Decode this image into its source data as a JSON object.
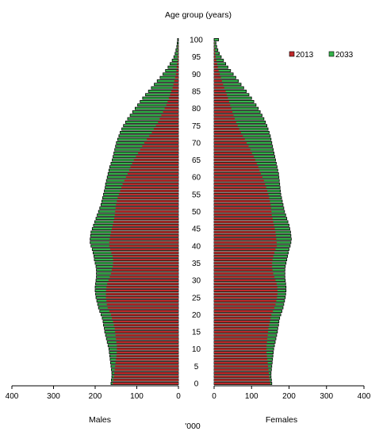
{
  "chart_data": {
    "type": "bar",
    "subtype": "population-pyramid",
    "title": "Age group (years)",
    "xlabel": "'000",
    "ylabel": "",
    "left_panel_label": "Males",
    "right_panel_label": "Females",
    "left_ticks": [
      "400",
      "300",
      "200",
      "100",
      "0"
    ],
    "right_ticks": [
      "0",
      "100",
      "200",
      "300",
      "400"
    ],
    "y_ticks": [
      "0",
      "5",
      "10",
      "15",
      "20",
      "25",
      "30",
      "35",
      "40",
      "45",
      "50",
      "55",
      "60",
      "65",
      "70",
      "75",
      "80",
      "85",
      "90",
      "95",
      "100"
    ],
    "xlim": [
      0,
      400
    ],
    "ylim": [
      0,
      100
    ],
    "grid": false,
    "legend_position": "top-right",
    "colors": {
      "2013": "#c0282a",
      "2033": "#34b34a",
      "outline": "#000000"
    },
    "ages": [
      0,
      1,
      2,
      3,
      4,
      5,
      6,
      7,
      8,
      9,
      10,
      11,
      12,
      13,
      14,
      15,
      16,
      17,
      18,
      19,
      20,
      21,
      22,
      23,
      24,
      25,
      26,
      27,
      28,
      29,
      30,
      31,
      32,
      33,
      34,
      35,
      36,
      37,
      38,
      39,
      40,
      41,
      42,
      43,
      44,
      45,
      46,
      47,
      48,
      49,
      50,
      51,
      52,
      53,
      54,
      55,
      56,
      57,
      58,
      59,
      60,
      61,
      62,
      63,
      64,
      65,
      66,
      67,
      68,
      69,
      70,
      71,
      72,
      73,
      74,
      75,
      76,
      77,
      78,
      79,
      80,
      81,
      82,
      83,
      84,
      85,
      86,
      87,
      88,
      89,
      90,
      91,
      92,
      93,
      94,
      95,
      96,
      97,
      98,
      99,
      100
    ],
    "series": [
      {
        "name": "2013",
        "males": [
          158,
          156,
          155,
          154,
          153,
          152,
          151,
          150,
          149,
          148,
          148,
          148,
          149,
          150,
          151,
          152,
          153,
          155,
          157,
          160,
          162,
          166,
          170,
          172,
          173,
          174,
          174,
          174,
          173,
          171,
          168,
          165,
          162,
          160,
          158,
          157,
          157,
          158,
          161,
          164,
          166,
          166,
          165,
          164,
          162,
          160,
          158,
          156,
          154,
          153,
          152,
          151,
          150,
          148,
          146,
          143,
          140,
          137,
          134,
          130,
          126,
          122,
          118,
          115,
          111,
          107,
          102,
          97,
          92,
          87,
          82,
          76,
          70,
          64,
          59,
          54,
          49,
          45,
          41,
          37,
          33,
          29,
          26,
          23,
          20,
          17,
          14,
          12,
          10,
          8,
          6,
          5,
          4,
          3,
          2,
          2,
          1,
          1,
          1,
          0,
          0
        ],
        "females": [
          150,
          148,
          147,
          146,
          145,
          144,
          143,
          142,
          141,
          140,
          140,
          140,
          141,
          142,
          143,
          144,
          145,
          147,
          149,
          151,
          153,
          157,
          161,
          164,
          166,
          168,
          169,
          169,
          169,
          167,
          164,
          161,
          158,
          156,
          155,
          155,
          156,
          158,
          161,
          164,
          167,
          167,
          166,
          165,
          164,
          162,
          160,
          158,
          156,
          154,
          153,
          152,
          151,
          149,
          147,
          145,
          142,
          139,
          136,
          133,
          129,
          125,
          121,
          118,
          114,
          110,
          106,
          101,
          97,
          92,
          87,
          82,
          77,
          72,
          67,
          63,
          59,
          55,
          52,
          49,
          46,
          43,
          40,
          37,
          34,
          31,
          27,
          24,
          21,
          18,
          15,
          12,
          10,
          8,
          6,
          4,
          3,
          2,
          1,
          1,
          0
        ]
      },
      {
        "name": "2033",
        "males": [
          162,
          161,
          160,
          160,
          161,
          162,
          163,
          164,
          165,
          166,
          167,
          169,
          171,
          173,
          175,
          177,
          178,
          180,
          181,
          183,
          186,
          189,
          192,
          194,
          196,
          198,
          199,
          200,
          200,
          199,
          198,
          197,
          197,
          197,
          198,
          200,
          202,
          203,
          205,
          207,
          210,
          212,
          212,
          211,
          210,
          207,
          204,
          201,
          198,
          195,
          192,
          189,
          186,
          184,
          182,
          180,
          178,
          176,
          175,
          173,
          171,
          169,
          167,
          165,
          162,
          159,
          157,
          155,
          153,
          151,
          149,
          146,
          143,
          140,
          136,
          132,
          127,
          122,
          116,
          110,
          104,
          98,
          92,
          86,
          79,
          72,
          65,
          58,
          51,
          44,
          37,
          31,
          25,
          20,
          15,
          11,
          8,
          6,
          4,
          3,
          2
        ],
        "females": [
          154,
          153,
          152,
          152,
          153,
          154,
          155,
          156,
          157,
          158,
          159,
          161,
          163,
          165,
          167,
          169,
          170,
          172,
          173,
          175,
          178,
          181,
          184,
          186,
          188,
          190,
          191,
          192,
          192,
          191,
          190,
          189,
          189,
          189,
          190,
          192,
          194,
          196,
          198,
          200,
          203,
          205,
          206,
          205,
          204,
          202,
          200,
          197,
          194,
          191,
          188,
          186,
          184,
          182,
          180,
          178,
          177,
          176,
          175,
          174,
          173,
          172,
          170,
          168,
          166,
          164,
          162,
          160,
          158,
          156,
          154,
          152,
          150,
          147,
          144,
          141,
          137,
          133,
          128,
          123,
          118,
          112,
          106,
          100,
          93,
          86,
          79,
          72,
          65,
          58,
          51,
          44,
          37,
          31,
          25,
          19,
          14,
          10,
          7,
          5,
          12
        ]
      }
    ]
  }
}
